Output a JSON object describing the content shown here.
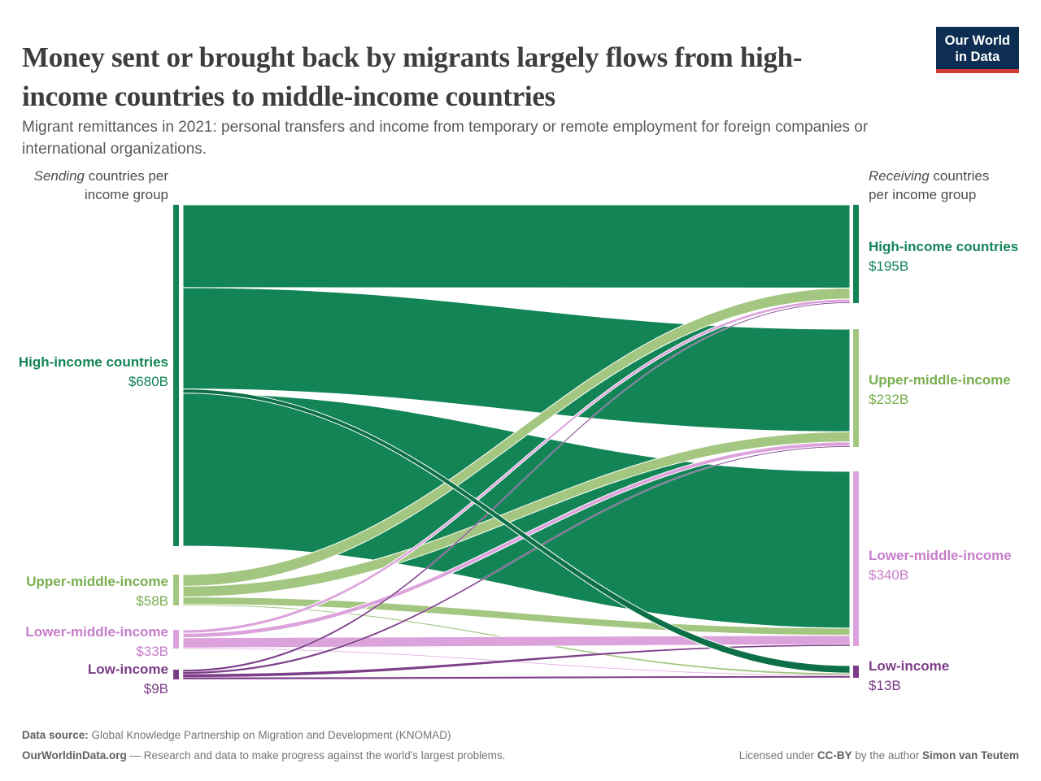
{
  "page": {
    "logo": {
      "line1": "Our World",
      "line2": "in Data"
    },
    "footer": {
      "source_label": "Data source:",
      "source_text": "Global Knowledge Partnership on Migration and Development (KNOMAD)",
      "site": "OurWorldinData.org",
      "site_tagline": "— Research and data to make progress against the world's largest problems.",
      "license_prefix": "Licensed under",
      "license": "CC-BY",
      "license_mid": "by the author",
      "author": "Simon van Teutem"
    }
  },
  "chart_data": {
    "type": "sankey",
    "title": "Money sent or brought back by migrants largely flows from high-income countries to middle-income countries",
    "subtitle": "Migrant remittances in 2021: personal transfers and income from temporary or remote employment for foreign companies or international organizations.",
    "unit": "billion US$",
    "year": "2021",
    "left_header": {
      "italic": "Sending",
      "line1_rest": " countries per",
      "line2": "income group"
    },
    "right_header": {
      "italic": "Receiving",
      "line1_rest": " countries",
      "line2": "per income group"
    },
    "nodes": {
      "sending": [
        {
          "key": "high",
          "label": "High-income countries",
          "value": 680,
          "value_label": "$680B"
        },
        {
          "key": "um",
          "label": "Upper-middle-income",
          "value": 58,
          "value_label": "$58B"
        },
        {
          "key": "lm",
          "label": "Lower-middle-income",
          "value": 33,
          "value_label": "$33B"
        },
        {
          "key": "low",
          "label": "Low-income",
          "value": 9,
          "value_label": "$9B"
        }
      ],
      "receiving": [
        {
          "key": "high",
          "label": "High-income countries",
          "value": 195,
          "value_label": "$195B"
        },
        {
          "key": "um",
          "label": "Upper-middle-income",
          "value": 232,
          "value_label": "$232B"
        },
        {
          "key": "lm",
          "label": "Lower-middle-income",
          "value": 340,
          "value_label": "$340B"
        },
        {
          "key": "low",
          "label": "Low-income",
          "value": 13,
          "value_label": "$13B"
        }
      ]
    },
    "colors": {
      "high": "#128456",
      "um": "#a3c680",
      "lm": "#dba2dc",
      "low": "#7c3d88",
      "high_to_low_overlap": "#0d6f47"
    },
    "label_colors": {
      "high": "#128456",
      "um": "#79af4e",
      "lm": "#c77dca",
      "low": "#7c3d88"
    },
    "flows": [
      {
        "from": "high",
        "to": "high",
        "value": 165
      },
      {
        "from": "high",
        "to": "um",
        "value": 202
      },
      {
        "from": "high",
        "to": "lm",
        "value": 305
      },
      {
        "from": "high",
        "to": "low",
        "value": 8
      },
      {
        "from": "um",
        "to": "high",
        "value": 22
      },
      {
        "from": "um",
        "to": "um",
        "value": 20
      },
      {
        "from": "um",
        "to": "lm",
        "value": 14
      },
      {
        "from": "um",
        "to": "low",
        "value": 2
      },
      {
        "from": "lm",
        "to": "high",
        "value": 6
      },
      {
        "from": "lm",
        "to": "um",
        "value": 8
      },
      {
        "from": "lm",
        "to": "lm",
        "value": 18
      },
      {
        "from": "lm",
        "to": "low",
        "value": 1
      },
      {
        "from": "low",
        "to": "high",
        "value": 2
      },
      {
        "from": "low",
        "to": "um",
        "value": 2
      },
      {
        "from": "low",
        "to": "lm",
        "value": 3
      },
      {
        "from": "low",
        "to": "low",
        "value": 2
      }
    ]
  }
}
